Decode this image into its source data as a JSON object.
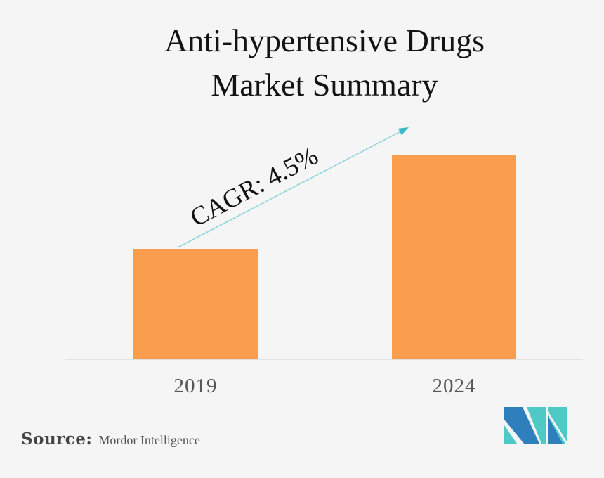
{
  "title": {
    "line1": "Anti-hypertensive Drugs",
    "line2": "Market Summary"
  },
  "chart_data": {
    "type": "bar",
    "title": "Anti-hypertensive Drugs Market Summary",
    "categories": [
      "2019",
      "2024"
    ],
    "values": [
      54,
      100
    ],
    "value_scale": "relative bar heights; no numeric value axis is displayed",
    "ylim": [
      0,
      100
    ],
    "xlabel": "",
    "ylabel": "",
    "grid": false,
    "legend": false,
    "bar_color": "#fa9e4d",
    "annotations": [
      {
        "text": "CAGR: 4.5%",
        "type": "growth-arrow",
        "from_category": "2019",
        "to_category": "2024"
      }
    ]
  },
  "annotation": {
    "cagr": "CAGR: 4.5%"
  },
  "source": {
    "label": "Source:",
    "value": "Mordor Intelligence"
  },
  "logo": {
    "alt": "mordor-intelligence-logo"
  },
  "colors": {
    "background": "#f5f5f6",
    "bar": "#fa9e4d",
    "arrow_line": "#8bd4db",
    "arrow_head": "#3ab9c8",
    "axis_line": "#e2e2e2",
    "title_text": "#131313",
    "tick_text": "#575757",
    "source_text": "#454545",
    "logo_teal": "#4ec9c5",
    "logo_blue": "#2e7fbc"
  }
}
